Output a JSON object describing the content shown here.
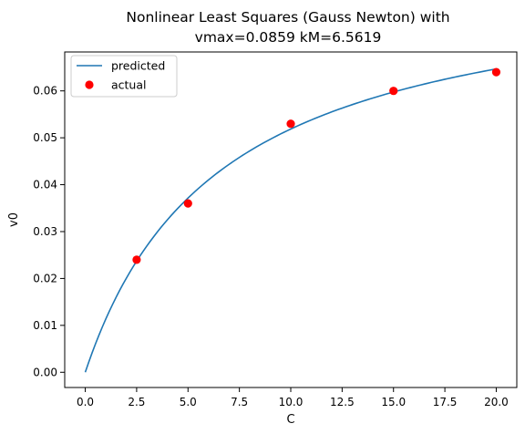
{
  "chart_data": {
    "type": "line",
    "title": "Nonlinear Least Squares (Gauss Newton) with",
    "subtitle": "vmax=0.0859 kM=6.5619",
    "xlabel": "C",
    "ylabel": "v0",
    "xlim": [
      -1.0,
      21.0
    ],
    "ylim": [
      -0.00325,
      0.0683
    ],
    "x_ticks": [
      "0.0",
      "2.5",
      "5.0",
      "7.5",
      "10.0",
      "12.5",
      "15.0",
      "17.5",
      "20.0"
    ],
    "y_ticks": [
      "0.00",
      "0.01",
      "0.02",
      "0.03",
      "0.04",
      "0.05",
      "0.06"
    ],
    "grid": false,
    "legend_position": "top-left",
    "model": {
      "vmax": 0.0859,
      "kM": 6.5619
    },
    "series": [
      {
        "name": "predicted",
        "kind": "line",
        "color": "#1f77b4",
        "x_range": [
          0,
          20
        ]
      },
      {
        "name": "actual",
        "kind": "scatter",
        "color": "#ff0000",
        "x": [
          2.5,
          5.0,
          10.0,
          15.0,
          20.0
        ],
        "y": [
          0.024,
          0.036,
          0.053,
          0.06,
          0.064
        ]
      }
    ]
  }
}
